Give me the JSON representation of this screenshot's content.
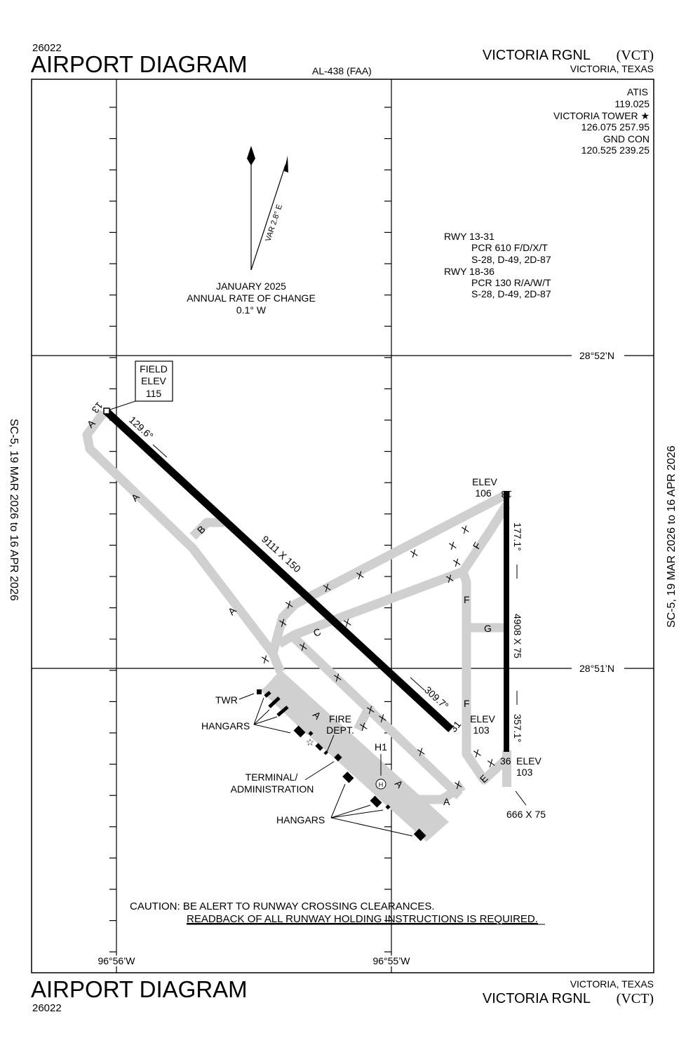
{
  "header": {
    "chart_number": "26022",
    "title": "AIRPORT DIAGRAM",
    "procedure_id": "AL-438 (FAA)",
    "airport_name": "VICTORIA RGNL",
    "airport_id": "(VCT)",
    "location": "VICTORIA, TEXAS"
  },
  "footer": {
    "title": "AIRPORT DIAGRAM",
    "chart_number": "26022",
    "location": "VICTORIA, TEXAS",
    "airport_name": "VICTORIA RGNL",
    "airport_id": "(VCT)"
  },
  "side_text": {
    "left": "SC-5,  19 MAR 2026  to  16 APR 2026",
    "right": "SC-5,  19 MAR 2026  to  16 APR 2026"
  },
  "frequencies": {
    "atis_label": "ATIS",
    "atis": "119.025",
    "tower_label": "VICTORIA TOWER ★",
    "tower": "126.075  257.95",
    "gnd_label": "GND CON",
    "gnd": "120.525  239.25"
  },
  "runway_info": [
    {
      "rwy": "RWY 13-31",
      "pcr": "PCR 610 F/D/X/T",
      "weights": "S-28, D-49, 2D-87"
    },
    {
      "rwy": "RWY 18-36",
      "pcr": "PCR 130 R/A/W/T",
      "weights": "S-28, D-49, 2D-87"
    }
  ],
  "magnetic": {
    "variation": "VAR 2.8° E",
    "date": "JANUARY 2025",
    "rate_label": "ANNUAL RATE OF CHANGE",
    "rate": "0.1° W"
  },
  "coordinates": {
    "lat_north": "28°52’N",
    "lat_south": "28°51’N",
    "lon_west": "96°56’W",
    "lon_east": "96°55’W"
  },
  "field_elev": {
    "label1": "FIELD",
    "label2": "ELEV",
    "value": "115"
  },
  "runways": {
    "r13": "13",
    "r31": "31",
    "r18": "18",
    "r36": "36",
    "dim_13_31": "9111 X 150",
    "hdg_13": "129.6°",
    "hdg_31": "309.7°",
    "dim_18_36": "4908 X 75",
    "hdg_18": "177.1°",
    "hdg_36": "357.1°",
    "elev_18_label": "ELEV",
    "elev_18": "106",
    "elev_31_label": "ELEV",
    "elev_31": "103",
    "elev_36_label": "ELEV",
    "elev_36": "103",
    "extension": "666 X 75"
  },
  "taxiways": [
    "A",
    "B",
    "C",
    "E",
    "F",
    "G"
  ],
  "labels": {
    "twr": "TWR",
    "hangars": "HANGARS",
    "fire1": "FIRE",
    "fire2": "DEPT.",
    "terminal1": "TERMINAL/",
    "terminal2": "ADMINISTRATION",
    "h1": "H1",
    "heli": "H"
  },
  "caution": {
    "line1": "CAUTION:  BE ALERT TO RUNWAY CROSSING CLEARANCES.",
    "line2": "READBACK OF ALL RUNWAY HOLDING INSTRUCTIONS IS REQUIRED."
  },
  "hold_mark": "X"
}
